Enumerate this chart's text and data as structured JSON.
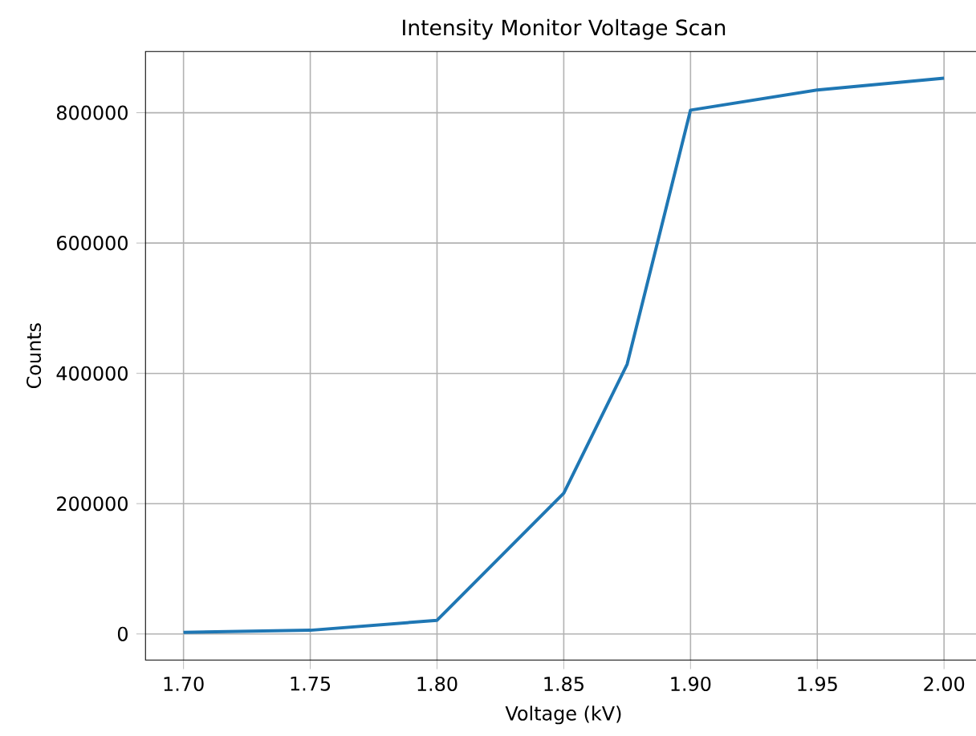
{
  "chart_data": {
    "type": "line",
    "title": "Intensity Monitor Voltage Scan",
    "xlabel": "Voltage (kV)",
    "ylabel": "Counts",
    "x": [
      1.7,
      1.75,
      1.8,
      1.85,
      1.875,
      1.9,
      1.95,
      2.0
    ],
    "series": [
      {
        "color": "#1f77b4",
        "values": [
          2500,
          5700,
          21000,
          216000,
          414000,
          804000,
          835000,
          853000
        ]
      }
    ],
    "xlim": [
      1.685,
      2.015
    ],
    "ylim": [
      -40000,
      894000
    ],
    "xticks": [
      {
        "value": 1.7,
        "label": "1.70"
      },
      {
        "value": 1.75,
        "label": "1.75"
      },
      {
        "value": 1.8,
        "label": "1.80"
      },
      {
        "value": 1.85,
        "label": "1.85"
      },
      {
        "value": 1.9,
        "label": "1.90"
      },
      {
        "value": 1.95,
        "label": "1.95"
      },
      {
        "value": 2.0,
        "label": "2.00"
      }
    ],
    "yticks": [
      0,
      200000,
      400000,
      600000,
      800000
    ],
    "grid": true,
    "marker": "none",
    "line_style": "solid"
  }
}
